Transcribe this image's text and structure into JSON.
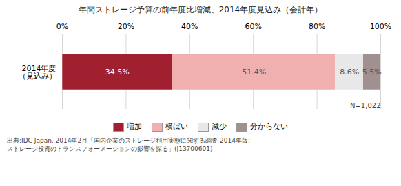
{
  "chart_data": {
    "type": "bar",
    "orientation": "horizontal",
    "stacked": true,
    "title": "年間ストレージ予算の前年度比増減、2014年度見込み（会計年）",
    "categories": [
      "2014年度\n（見込み）"
    ],
    "series": [
      {
        "name": "増加",
        "color": "#a02030",
        "values": [
          34.5
        ],
        "value_labels": [
          "34.5%"
        ]
      },
      {
        "name": "横ばい",
        "color": "#f0b0b0",
        "values": [
          51.4
        ],
        "value_labels": [
          "51.4%"
        ]
      },
      {
        "name": "減少",
        "color": "#e8e8e8",
        "values": [
          8.6
        ],
        "value_labels": [
          "8.6%"
        ]
      },
      {
        "name": "分からない",
        "color": "#a09090",
        "values": [
          5.5
        ],
        "value_labels": [
          "5.5%"
        ]
      }
    ],
    "xlim": [
      0,
      100
    ],
    "xticks": [
      {
        "value": 0,
        "label": "0%"
      },
      {
        "value": 20,
        "label": "20%"
      },
      {
        "value": 40,
        "label": "40%"
      },
      {
        "value": 60,
        "label": "60%"
      },
      {
        "value": 80,
        "label": "80%"
      },
      {
        "value": 100,
        "label": "100%"
      }
    ],
    "grid": true,
    "legend": "bottom",
    "data_labels": true,
    "annotations": [
      "N=1,022"
    ],
    "footnote": [
      "出典:IDC Japan, 2014年2月「国内企業のストレージ利用実態に関する調査 2014年版:",
      "ストレージ投資のトランスフォーメーションの影響を探る」(J13700601)"
    ]
  }
}
